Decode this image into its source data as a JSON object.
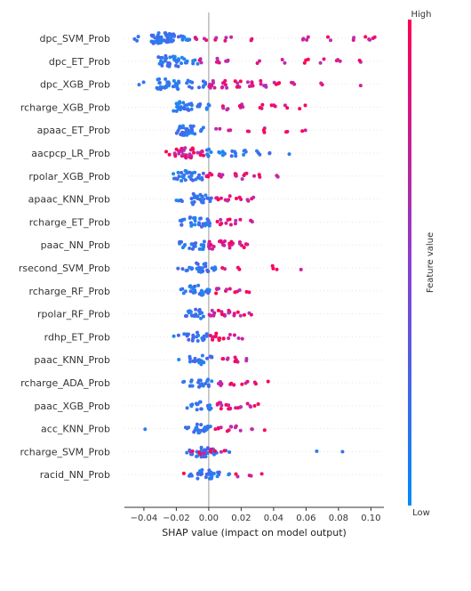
{
  "chart_data": {
    "type": "scatter",
    "subtype": "shap-beeswarm",
    "xlabel": "SHAP value (impact on model output)",
    "xlim": [
      -0.052,
      0.108
    ],
    "xticks": [
      -0.04,
      -0.02,
      0.0,
      0.02,
      0.04,
      0.06,
      0.08,
      0.1
    ],
    "xtick_labels": [
      "−0.04",
      "−0.02",
      "0.00",
      "0.02",
      "0.04",
      "0.06",
      "0.08",
      "0.10"
    ],
    "colorbar": {
      "label": "Feature value",
      "high_label": "High",
      "low_label": "Low",
      "high_color": "#ff0052",
      "low_color": "#008bfb"
    },
    "features": [
      {
        "name": "dpc_SVM_Prob",
        "low": [
          [
            -0.045,
            3
          ],
          [
            -0.034,
            12
          ],
          [
            -0.03,
            16
          ],
          [
            -0.026,
            14
          ],
          [
            -0.022,
            10
          ],
          [
            -0.017,
            6
          ],
          [
            -0.012,
            4
          ]
        ],
        "high": [
          [
            -0.008,
            3
          ],
          [
            -0.002,
            2
          ],
          [
            0.005,
            2
          ],
          [
            0.012,
            3
          ],
          [
            0.025,
            2
          ],
          [
            0.06,
            4
          ],
          [
            0.075,
            2
          ],
          [
            0.088,
            2
          ],
          [
            0.098,
            3
          ],
          [
            0.103,
            2
          ]
        ]
      },
      {
        "name": "dpc_ET_Prob",
        "low": [
          [
            -0.03,
            8
          ],
          [
            -0.025,
            14
          ],
          [
            -0.02,
            12
          ],
          [
            -0.015,
            6
          ],
          [
            -0.008,
            4
          ]
        ],
        "high": [
          [
            -0.004,
            3
          ],
          [
            0.005,
            4
          ],
          [
            0.012,
            3
          ],
          [
            0.03,
            2
          ],
          [
            0.045,
            2
          ],
          [
            0.06,
            3
          ],
          [
            0.07,
            2
          ],
          [
            0.08,
            3
          ],
          [
            0.092,
            2
          ]
        ]
      },
      {
        "name": "dpc_XGB_Prob",
        "low": [
          [
            -0.042,
            2
          ],
          [
            -0.03,
            10
          ],
          [
            -0.026,
            12
          ],
          [
            -0.02,
            9
          ],
          [
            -0.012,
            6
          ],
          [
            -0.004,
            6
          ]
        ],
        "high": [
          [
            0.002,
            8
          ],
          [
            0.01,
            7
          ],
          [
            0.018,
            6
          ],
          [
            0.026,
            6
          ],
          [
            0.034,
            5
          ],
          [
            0.042,
            4
          ],
          [
            0.052,
            3
          ],
          [
            0.07,
            2
          ],
          [
            0.095,
            1
          ]
        ]
      },
      {
        "name": "rcharge_XGB_Prob",
        "low": [
          [
            -0.02,
            8
          ],
          [
            -0.016,
            10
          ],
          [
            -0.012,
            8
          ],
          [
            -0.006,
            5
          ],
          [
            0.0,
            4
          ]
        ],
        "high": [
          [
            0.01,
            4
          ],
          [
            0.02,
            4
          ],
          [
            0.032,
            3
          ],
          [
            0.04,
            3
          ],
          [
            0.048,
            2
          ],
          [
            0.058,
            2
          ]
        ]
      },
      {
        "name": "apaac_ET_Prob",
        "low": [
          [
            -0.018,
            10
          ],
          [
            -0.014,
            12
          ],
          [
            -0.01,
            8
          ],
          [
            -0.005,
            4
          ]
        ],
        "high": [
          [
            0.005,
            2
          ],
          [
            0.012,
            2
          ],
          [
            0.025,
            2
          ],
          [
            0.035,
            3
          ],
          [
            0.048,
            2
          ],
          [
            0.058,
            2
          ]
        ]
      },
      {
        "name": "aacpcp_LR_Prob",
        "high": [
          [
            -0.026,
            2
          ],
          [
            -0.02,
            8
          ],
          [
            -0.015,
            10
          ],
          [
            -0.01,
            9
          ],
          [
            -0.005,
            6
          ]
        ],
        "low": [
          [
            0.0,
            6
          ],
          [
            0.008,
            6
          ],
          [
            0.015,
            5
          ],
          [
            0.022,
            4
          ],
          [
            0.03,
            3
          ],
          [
            0.038,
            2
          ],
          [
            0.05,
            1
          ]
        ]
      },
      {
        "name": "rpolar_XGB_Prob",
        "low": [
          [
            -0.02,
            6
          ],
          [
            -0.015,
            10
          ],
          [
            -0.01,
            9
          ],
          [
            -0.005,
            6
          ]
        ],
        "high": [
          [
            0.0,
            5
          ],
          [
            0.008,
            4
          ],
          [
            0.015,
            4
          ],
          [
            0.022,
            4
          ],
          [
            0.03,
            3
          ],
          [
            0.042,
            2
          ]
        ]
      },
      {
        "name": "apaac_KNN_Prob",
        "low": [
          [
            -0.018,
            5
          ],
          [
            -0.01,
            10
          ],
          [
            -0.005,
            10
          ],
          [
            0.0,
            6
          ]
        ],
        "high": [
          [
            0.006,
            4
          ],
          [
            0.012,
            4
          ],
          [
            0.018,
            3
          ],
          [
            0.025,
            2
          ],
          [
            0.028,
            2
          ]
        ]
      },
      {
        "name": "rcharge_ET_Prob",
        "low": [
          [
            -0.016,
            6
          ],
          [
            -0.01,
            10
          ],
          [
            -0.004,
            9
          ],
          [
            0.0,
            6
          ]
        ],
        "high": [
          [
            0.006,
            4
          ],
          [
            0.012,
            4
          ],
          [
            0.018,
            3
          ],
          [
            0.025,
            2
          ]
        ]
      },
      {
        "name": "paac_NN_Prob",
        "low": [
          [
            -0.016,
            6
          ],
          [
            -0.01,
            8
          ],
          [
            -0.004,
            8
          ]
        ],
        "high": [
          [
            0.002,
            8
          ],
          [
            0.008,
            7
          ],
          [
            0.014,
            6
          ],
          [
            0.02,
            4
          ],
          [
            0.022,
            2
          ]
        ]
      },
      {
        "name": "rsecond_SVM_Prob",
        "low": [
          [
            -0.018,
            2
          ],
          [
            -0.012,
            6
          ],
          [
            -0.006,
            10
          ],
          [
            -0.002,
            8
          ],
          [
            0.004,
            4
          ]
        ],
        "high": [
          [
            0.01,
            2
          ],
          [
            0.018,
            2
          ],
          [
            0.04,
            3
          ],
          [
            0.058,
            1
          ]
        ]
      },
      {
        "name": "rcharge_RF_Prob",
        "low": [
          [
            -0.016,
            4
          ],
          [
            -0.01,
            10
          ],
          [
            -0.005,
            10
          ],
          [
            0.0,
            6
          ]
        ],
        "high": [
          [
            0.006,
            4
          ],
          [
            0.012,
            3
          ],
          [
            0.018,
            3
          ],
          [
            0.025,
            2
          ]
        ]
      },
      {
        "name": "rpolar_RF_Prob",
        "low": [
          [
            -0.014,
            4
          ],
          [
            -0.01,
            8
          ],
          [
            -0.005,
            8
          ]
        ],
        "high": [
          [
            0.002,
            6
          ],
          [
            0.008,
            6
          ],
          [
            0.014,
            5
          ],
          [
            0.02,
            3
          ],
          [
            0.026,
            2
          ]
        ]
      },
      {
        "name": "rdhp_ET_Prob",
        "low": [
          [
            -0.02,
            2
          ],
          [
            -0.014,
            5
          ],
          [
            -0.008,
            8
          ],
          [
            -0.003,
            8
          ]
        ],
        "high": [
          [
            0.003,
            6
          ],
          [
            0.008,
            5
          ],
          [
            0.014,
            3
          ],
          [
            0.02,
            2
          ]
        ]
      },
      {
        "name": "paac_KNN_Prob",
        "low": [
          [
            -0.018,
            1
          ],
          [
            -0.01,
            6
          ],
          [
            -0.005,
            9
          ],
          [
            0.0,
            5
          ]
        ],
        "high": [
          [
            0.01,
            4
          ],
          [
            0.016,
            4
          ],
          [
            0.022,
            2
          ]
        ]
      },
      {
        "name": "rcharge_ADA_Prob",
        "low": [
          [
            -0.016,
            2
          ],
          [
            -0.01,
            5
          ],
          [
            -0.005,
            8
          ],
          [
            0.0,
            6
          ]
        ],
        "high": [
          [
            0.006,
            4
          ],
          [
            0.014,
            4
          ],
          [
            0.022,
            3
          ],
          [
            0.028,
            2
          ],
          [
            0.035,
            1
          ]
        ]
      },
      {
        "name": "paac_XGB_Prob",
        "low": [
          [
            -0.012,
            4
          ],
          [
            -0.006,
            8
          ],
          [
            0.0,
            8
          ]
        ],
        "high": [
          [
            0.006,
            6
          ],
          [
            0.012,
            5
          ],
          [
            0.018,
            4
          ],
          [
            0.024,
            3
          ],
          [
            0.03,
            2
          ]
        ]
      },
      {
        "name": "acc_KNN_Prob",
        "low": [
          [
            -0.04,
            1
          ],
          [
            -0.014,
            3
          ],
          [
            -0.008,
            8
          ],
          [
            -0.004,
            8
          ],
          [
            0.0,
            5
          ]
        ],
        "high": [
          [
            0.006,
            4
          ],
          [
            0.012,
            4
          ],
          [
            0.018,
            3
          ],
          [
            0.025,
            2
          ],
          [
            0.033,
            1
          ]
        ]
      },
      {
        "name": "rcharge_SVM_Prob",
        "low": [
          [
            -0.012,
            4
          ],
          [
            -0.006,
            10
          ],
          [
            -0.002,
            10
          ],
          [
            0.003,
            5
          ],
          [
            0.012,
            2
          ],
          [
            0.065,
            1
          ],
          [
            0.082,
            1
          ]
        ],
        "high": [
          [
            -0.01,
            2
          ],
          [
            -0.004,
            3
          ],
          [
            0.002,
            3
          ],
          [
            0.008,
            2
          ]
        ]
      },
      {
        "name": "racid_NN_Prob",
        "low": [
          [
            -0.01,
            4
          ],
          [
            -0.005,
            10
          ],
          [
            0.0,
            10
          ],
          [
            0.005,
            5
          ],
          [
            0.014,
            2
          ]
        ],
        "high": [
          [
            -0.016,
            1
          ],
          [
            0.018,
            2
          ],
          [
            0.026,
            2
          ],
          [
            0.034,
            1
          ]
        ]
      }
    ]
  }
}
